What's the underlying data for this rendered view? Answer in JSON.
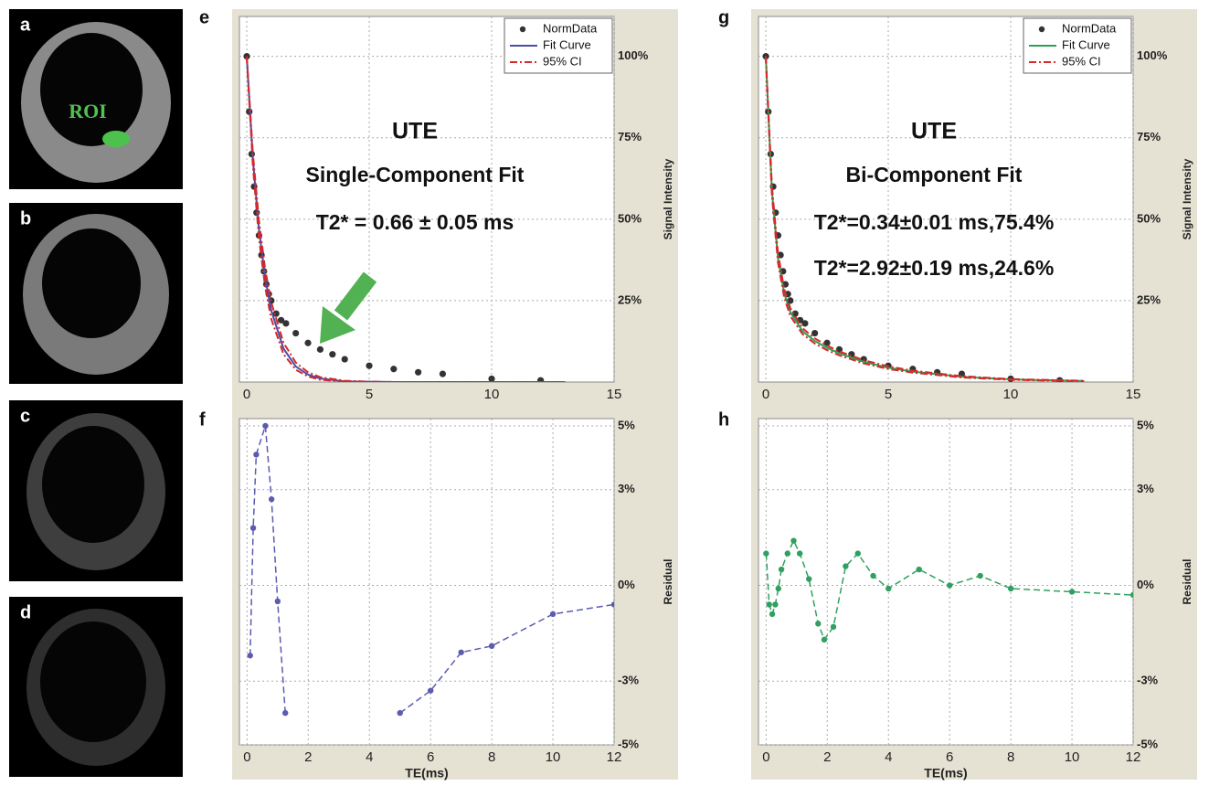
{
  "images": [
    {
      "label": "a",
      "annotation": "ROI"
    },
    {
      "label": "b"
    },
    {
      "label": "c"
    },
    {
      "label": "d"
    }
  ],
  "chart_data": [
    {
      "type": "line",
      "panel_label": "e",
      "annotations": [
        "UTE",
        "Single-Component Fit",
        "T2* = 0.66 ± 0.05 ms"
      ],
      "y_label": "Signal Intensity",
      "xlim": [
        -0.3,
        15
      ],
      "xticks": [
        0,
        5,
        10,
        15
      ],
      "ylim": [
        0,
        110
      ],
      "yticks": [
        {
          "value": 25,
          "label": "25%"
        },
        {
          "value": 50,
          "label": "50%"
        },
        {
          "value": 75,
          "label": "75%"
        },
        {
          "value": 100,
          "label": "100%"
        }
      ],
      "grid": true,
      "legend": "upper right",
      "series": [
        {
          "name": "NormData",
          "color": "#333333",
          "style": "points",
          "x": [
            0,
            0.1,
            0.2,
            0.3,
            0.4,
            0.5,
            0.6,
            0.7,
            0.8,
            0.9,
            1,
            1.2,
            1.4,
            1.6,
            2,
            2.5,
            3,
            3.5,
            4,
            5,
            6,
            7,
            8,
            10,
            12
          ],
          "values": [
            100,
            83,
            70,
            60,
            52,
            45,
            39,
            34,
            30,
            27,
            25,
            21,
            19,
            18,
            15,
            12,
            10,
            8.5,
            7,
            5,
            4,
            3,
            2.5,
            1,
            0.5
          ]
        },
        {
          "name": "Fit Curve",
          "color": "#4b4ba8",
          "style": "solid",
          "x": [
            0,
            0.25,
            0.5,
            0.75,
            1,
            1.5,
            2,
            2.5,
            3,
            4,
            5,
            6,
            8,
            10,
            13
          ],
          "values": [
            100,
            68.5,
            46.9,
            32.1,
            22.0,
            10.3,
            4.8,
            2.3,
            1.1,
            0.2,
            0.1,
            0,
            0,
            0,
            0
          ]
        },
        {
          "name": "95% CI",
          "color": "#d42a2a",
          "style": "dash-dot",
          "x": [
            0,
            0.25,
            0.5,
            0.75,
            1,
            1.5,
            2,
            2.5,
            3,
            4,
            5,
            6,
            8,
            10,
            13
          ],
          "values": [
            100,
            70.3,
            49.5,
            34.8,
            24.5,
            12.1,
            6.0,
            3.0,
            1.5,
            0.4,
            0.1,
            0,
            0,
            0,
            0
          ],
          "lower": [
            100,
            66.4,
            44.1,
            29.3,
            19.4,
            8.6,
            3.8,
            1.7,
            0.7,
            0.1,
            0,
            0,
            0,
            0,
            0
          ]
        }
      ]
    },
    {
      "type": "line",
      "panel_label": "f",
      "x_label": "TE(ms)",
      "y_label": "Residual",
      "xlim": [
        -0.25,
        12
      ],
      "xticks": [
        0,
        2,
        4,
        6,
        8,
        10,
        12
      ],
      "ylim": [
        -5,
        5
      ],
      "yticks": [
        {
          "value": 5,
          "label": "5%"
        },
        {
          "value": 3,
          "label": "3%"
        },
        {
          "value": 0,
          "label": "0%"
        },
        {
          "value": -3,
          "label": "-3%"
        },
        {
          "value": -5,
          "label": "-5%"
        }
      ],
      "grid": true,
      "series": [
        {
          "color": "#5b5bb0",
          "style": "dashed-markers",
          "x": [
            0.1,
            0.2,
            0.3,
            0.6,
            0.8,
            1.0,
            1.25,
            3,
            5,
            6,
            7,
            8,
            10,
            12
          ],
          "values": [
            -2.2,
            1.8,
            4.1,
            5,
            2.7,
            -0.5,
            -4,
            null,
            -4,
            -3.3,
            -2.1,
            -1.9,
            -0.9,
            -0.6
          ]
        }
      ]
    },
    {
      "type": "line",
      "panel_label": "g",
      "annotations": [
        "UTE",
        "Bi-Component Fit",
        "T2*=0.34±0.01 ms,75.4%",
        "T2*=2.92±0.19 ms,24.6%"
      ],
      "y_label": "Signal Intensity",
      "xlim": [
        -0.3,
        15
      ],
      "xticks": [
        0,
        5,
        10,
        15
      ],
      "ylim": [
        0,
        110
      ],
      "yticks": [
        {
          "value": 25,
          "label": "25%"
        },
        {
          "value": 50,
          "label": "50%"
        },
        {
          "value": 75,
          "label": "75%"
        },
        {
          "value": 100,
          "label": "100%"
        }
      ],
      "grid": true,
      "legend": "upper right",
      "series": [
        {
          "name": "NormData",
          "color": "#333333",
          "style": "points",
          "x": [
            0,
            0.1,
            0.2,
            0.3,
            0.4,
            0.5,
            0.6,
            0.7,
            0.8,
            0.9,
            1,
            1.2,
            1.4,
            1.6,
            2,
            2.5,
            3,
            3.5,
            4,
            5,
            6,
            7,
            8,
            10,
            12
          ],
          "values": [
            100,
            83,
            70,
            60,
            52,
            45,
            39,
            34,
            30,
            27,
            25,
            21,
            19,
            18,
            15,
            12,
            10,
            8.5,
            7,
            5,
            4,
            3,
            2.5,
            1,
            0.5
          ]
        },
        {
          "name": "Fit Curve",
          "color": "#2f9e55",
          "style": "solid",
          "x": [
            0,
            0.25,
            0.5,
            0.75,
            1,
            1.5,
            2,
            2.5,
            3,
            4,
            5,
            6,
            8,
            10,
            13
          ],
          "values": [
            100,
            58.7,
            38.0,
            27.3,
            21.5,
            15.6,
            12.6,
            10.5,
            8.8,
            6.2,
            4.4,
            3.2,
            1.6,
            0.8,
            0.3
          ]
        },
        {
          "name": "95% CI",
          "color": "#d42a2a",
          "style": "dash-dot",
          "x": [
            0,
            0.25,
            0.5,
            0.75,
            1,
            1.5,
            2,
            2.5,
            3,
            4,
            5,
            6,
            8,
            10,
            13
          ],
          "values": [
            100,
            60.2,
            39.4,
            28.6,
            22.7,
            16.5,
            13.4,
            11.2,
            9.4,
            6.7,
            4.8,
            3.5,
            1.8,
            0.9,
            0.4
          ],
          "lower": [
            100,
            57.2,
            36.6,
            26.0,
            20.3,
            14.7,
            11.8,
            9.8,
            8.2,
            5.7,
            4.0,
            2.9,
            1.4,
            0.7,
            0.2
          ]
        }
      ]
    },
    {
      "type": "line",
      "panel_label": "h",
      "x_label": "TE(ms)",
      "y_label": "Residual",
      "xlim": [
        -0.25,
        12
      ],
      "xticks": [
        0,
        2,
        4,
        6,
        8,
        10,
        12
      ],
      "ylim": [
        -5,
        5
      ],
      "yticks": [
        {
          "value": 5,
          "label": "5%"
        },
        {
          "value": 3,
          "label": "3%"
        },
        {
          "value": 0,
          "label": "0%"
        },
        {
          "value": -3,
          "label": "-3%"
        },
        {
          "value": -5,
          "label": "-5%"
        }
      ],
      "grid": true,
      "series": [
        {
          "color": "#2fa060",
          "style": "dashed-markers",
          "x": [
            0,
            0.1,
            0.2,
            0.3,
            0.4,
            0.5,
            0.7,
            0.9,
            1.1,
            1.4,
            1.7,
            1.9,
            2.2,
            2.6,
            3,
            3.5,
            4,
            5,
            6,
            7,
            8,
            10,
            12
          ],
          "values": [
            1.0,
            -0.6,
            -0.9,
            -0.6,
            -0.1,
            0.5,
            1.0,
            1.4,
            1.0,
            0.2,
            -1.2,
            -1.7,
            -1.3,
            0.6,
            1.0,
            0.3,
            -0.1,
            0.5,
            0,
            0.3,
            -0.1,
            -0.2,
            -0.3
          ]
        }
      ]
    }
  ]
}
